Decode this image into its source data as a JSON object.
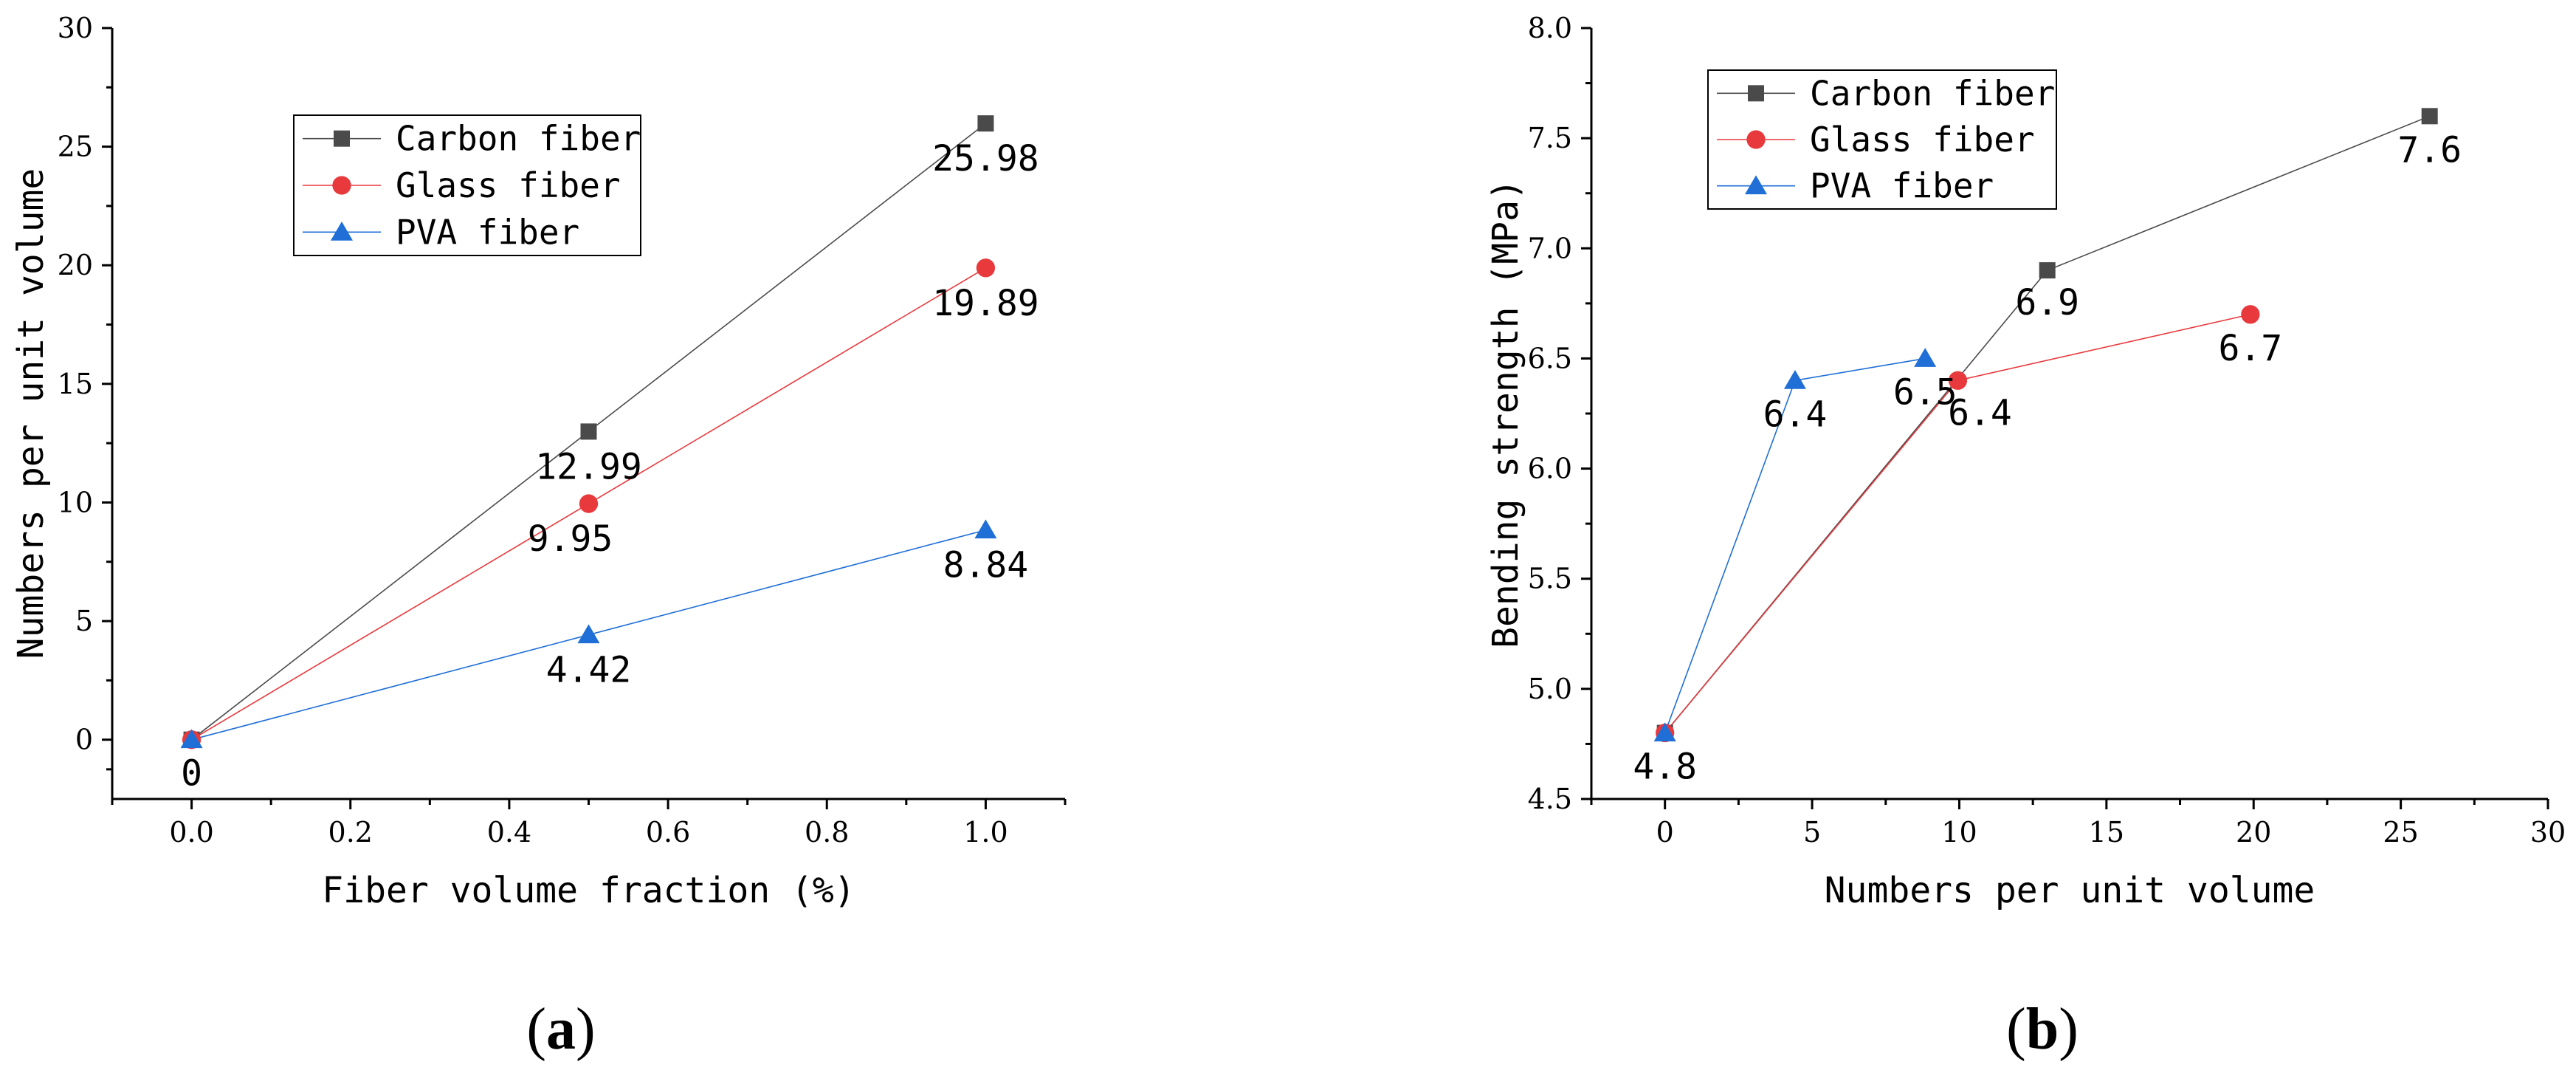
{
  "colors": {
    "carbon": "#4a4a4a",
    "glass": "#e8393d",
    "pva": "#1f6fd6"
  },
  "chart_data": [
    {
      "panel": "a",
      "type": "line",
      "xlabel": "Fiber volume fraction (%)",
      "ylabel": "Numbers per unit volume",
      "xlim": [
        -0.1,
        1.1
      ],
      "ylim": [
        -2.5,
        30
      ],
      "xticks": [
        0.0,
        0.2,
        0.4,
        0.6,
        0.8,
        1.0
      ],
      "xtick_labels": [
        "0.0",
        "0.2",
        "0.4",
        "0.6",
        "0.8",
        "1.0"
      ],
      "yticks": [
        0,
        5,
        10,
        15,
        20,
        25,
        30
      ],
      "ytick_labels": [
        "0",
        "5",
        "10",
        "15",
        "20",
        "25",
        "30"
      ],
      "legend": "upper-center",
      "series": [
        {
          "name": "Carbon fiber",
          "marker": "square",
          "x": [
            0,
            0.5,
            1.0
          ],
          "y": [
            0,
            12.99,
            25.98
          ],
          "labels": [
            "",
            "12.99",
            "25.98"
          ]
        },
        {
          "name": "Glass fiber",
          "marker": "circle",
          "x": [
            0,
            0.5,
            1.0
          ],
          "y": [
            0,
            9.95,
            19.89
          ],
          "labels": [
            "",
            "9.95",
            "19.89"
          ]
        },
        {
          "name": "PVA fiber",
          "marker": "triangle",
          "x": [
            0,
            0.5,
            1.0
          ],
          "y": [
            0,
            4.42,
            8.84
          ],
          "labels": [
            "0",
            "4.42",
            "8.84"
          ]
        }
      ]
    },
    {
      "panel": "b",
      "type": "line",
      "xlabel": "Numbers per unit volume",
      "ylabel": "Bending strength (MPa)",
      "xlim": [
        -2.5,
        30
      ],
      "ylim": [
        4.5,
        8.0
      ],
      "xticks": [
        0,
        5,
        10,
        15,
        20,
        25,
        30
      ],
      "xtick_labels": [
        "0",
        "5",
        "10",
        "15",
        "20",
        "25",
        "30"
      ],
      "yticks": [
        4.5,
        5.0,
        5.5,
        6.0,
        6.5,
        7.0,
        7.5,
        8.0
      ],
      "ytick_labels": [
        "4.5",
        "5.0",
        "5.5",
        "6.0",
        "6.5",
        "7.0",
        "7.5",
        "8.0"
      ],
      "legend": "upper-left",
      "series": [
        {
          "name": "Carbon fiber",
          "marker": "square",
          "x": [
            0,
            12.99,
            25.98
          ],
          "y": [
            4.8,
            6.9,
            7.6
          ],
          "labels": [
            "",
            "6.9",
            "7.6"
          ]
        },
        {
          "name": "Glass fiber",
          "marker": "circle",
          "x": [
            0,
            9.95,
            19.89
          ],
          "y": [
            4.8,
            6.4,
            6.7
          ],
          "labels": [
            "4.8",
            "6.4",
            "6.7"
          ]
        },
        {
          "name": "PVA fiber",
          "marker": "triangle",
          "x": [
            0,
            4.42,
            8.84
          ],
          "y": [
            4.8,
            6.4,
            6.5
          ],
          "labels": [
            "",
            "6.4",
            "6.5"
          ]
        }
      ]
    }
  ],
  "panel_labels": {
    "a": {
      "open": "(",
      "letter": "a",
      "close": ")"
    },
    "b": {
      "open": "(",
      "letter": "b",
      "close": ")"
    }
  }
}
